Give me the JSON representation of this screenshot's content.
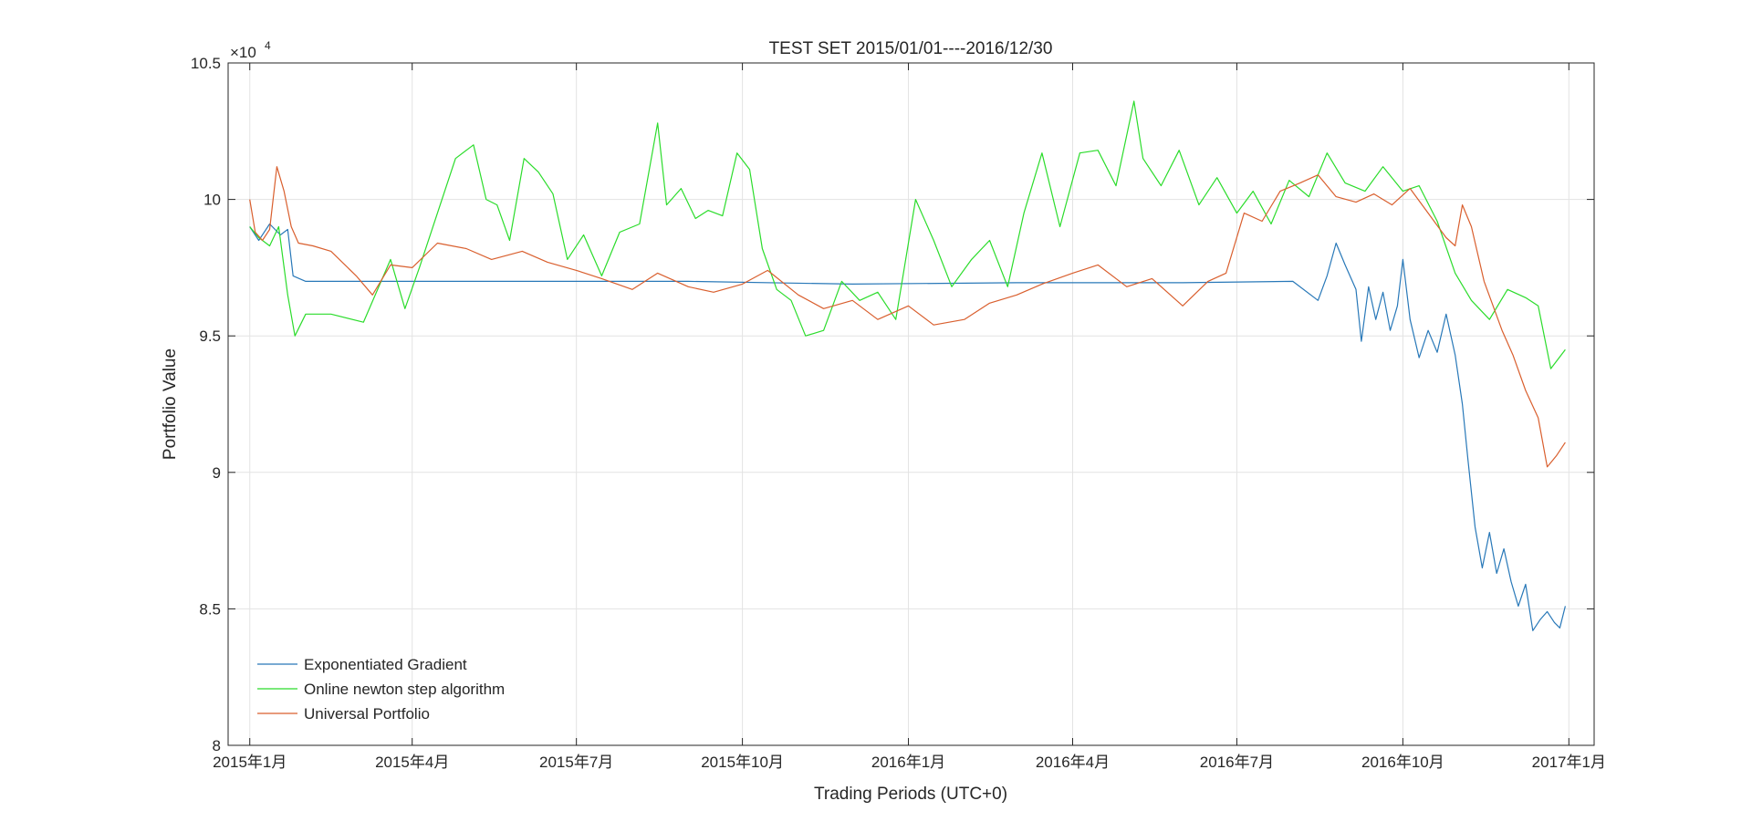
{
  "chart_data": {
    "type": "line",
    "title": "TEST SET 2015/01/01----2016/12/30",
    "xlabel": "Trading Periods (UTC+0)",
    "ylabel": "Portfolio Value",
    "y_exponent_label": "×10",
    "y_exponent_power": "4",
    "xlim": [
      "2014-12-20",
      "2017-01-15"
    ],
    "ylim": [
      80000,
      105000
    ],
    "y_ticks": [
      {
        "value": 80000,
        "label": "8"
      },
      {
        "value": 85000,
        "label": "8.5"
      },
      {
        "value": 90000,
        "label": "9"
      },
      {
        "value": 95000,
        "label": "9.5"
      },
      {
        "value": 100000,
        "label": "10"
      },
      {
        "value": 105000,
        "label": "10.5"
      }
    ],
    "x_ticks": [
      {
        "value": "2015-01-01",
        "label": "2015年1月"
      },
      {
        "value": "2015-04-01",
        "label": "2015年4月"
      },
      {
        "value": "2015-07-01",
        "label": "2015年7月"
      },
      {
        "value": "2015-10-01",
        "label": "2015年10月"
      },
      {
        "value": "2016-01-01",
        "label": "2016年1月"
      },
      {
        "value": "2016-04-01",
        "label": "2016年4月"
      },
      {
        "value": "2016-07-01",
        "label": "2016年7月"
      },
      {
        "value": "2016-10-01",
        "label": "2016年10月"
      },
      {
        "value": "2017-01-01",
        "label": "2017年1月"
      }
    ],
    "grid": true,
    "legend_position": "bottom-left",
    "series": [
      {
        "name": "Exponentiated Gradient",
        "color": "#2878b8",
        "x": [
          "2015-01-01",
          "2015-01-06",
          "2015-01-12",
          "2015-01-18",
          "2015-01-22",
          "2015-01-25",
          "2015-02-01",
          "2015-03-01",
          "2015-06-01",
          "2015-09-01",
          "2015-12-01",
          "2016-03-01",
          "2016-06-01",
          "2016-08-01",
          "2016-08-15",
          "2016-08-20",
          "2016-08-25",
          "2016-08-30",
          "2016-09-05",
          "2016-09-08",
          "2016-09-12",
          "2016-09-16",
          "2016-09-20",
          "2016-09-24",
          "2016-09-28",
          "2016-10-01",
          "2016-10-05",
          "2016-10-10",
          "2016-10-15",
          "2016-10-20",
          "2016-10-25",
          "2016-10-30",
          "2016-11-03",
          "2016-11-06",
          "2016-11-10",
          "2016-11-14",
          "2016-11-18",
          "2016-11-22",
          "2016-11-26",
          "2016-11-30",
          "2016-12-04",
          "2016-12-08",
          "2016-12-12",
          "2016-12-16",
          "2016-12-20",
          "2016-12-24",
          "2016-12-27",
          "2016-12-30"
        ],
        "values": [
          99000,
          98500,
          99100,
          98700,
          98900,
          97200,
          97000,
          97000,
          97000,
          97000,
          96900,
          96950,
          96950,
          97000,
          96300,
          97200,
          98400,
          97600,
          96700,
          94800,
          96800,
          95600,
          96600,
          95200,
          96100,
          97800,
          95600,
          94200,
          95200,
          94400,
          95800,
          94300,
          92500,
          90500,
          88000,
          86500,
          87800,
          86300,
          87200,
          86000,
          85100,
          85900,
          84200,
          84600,
          84900,
          84500,
          84300,
          85100
        ]
      },
      {
        "name": "Online newton step algorithm",
        "color": "#2bdc2b",
        "x": [
          "2015-01-01",
          "2015-01-06",
          "2015-01-12",
          "2015-01-17",
          "2015-01-22",
          "2015-01-26",
          "2015-02-01",
          "2015-02-15",
          "2015-03-05",
          "2015-03-20",
          "2015-03-28",
          "2015-04-05",
          "2015-04-15",
          "2015-04-25",
          "2015-05-05",
          "2015-05-12",
          "2015-05-18",
          "2015-05-25",
          "2015-06-02",
          "2015-06-10",
          "2015-06-18",
          "2015-06-26",
          "2015-07-05",
          "2015-07-15",
          "2015-07-25",
          "2015-08-05",
          "2015-08-15",
          "2015-08-20",
          "2015-08-28",
          "2015-09-05",
          "2015-09-12",
          "2015-09-20",
          "2015-09-28",
          "2015-10-05",
          "2015-10-12",
          "2015-10-20",
          "2015-10-28",
          "2015-11-05",
          "2015-11-15",
          "2015-11-25",
          "2015-12-05",
          "2015-12-15",
          "2015-12-25",
          "2016-01-05",
          "2016-01-15",
          "2016-01-25",
          "2016-02-05",
          "2016-02-15",
          "2016-02-25",
          "2016-03-05",
          "2016-03-15",
          "2016-03-25",
          "2016-04-05",
          "2016-04-15",
          "2016-04-25",
          "2016-05-05",
          "2016-05-10",
          "2016-05-20",
          "2016-05-30",
          "2016-06-10",
          "2016-06-20",
          "2016-07-01",
          "2016-07-10",
          "2016-07-20",
          "2016-07-30",
          "2016-08-10",
          "2016-08-20",
          "2016-08-30",
          "2016-09-10",
          "2016-09-20",
          "2016-10-01",
          "2016-10-10",
          "2016-10-20",
          "2016-10-30",
          "2016-11-08",
          "2016-11-18",
          "2016-11-28",
          "2016-12-08",
          "2016-12-15",
          "2016-12-22",
          "2016-12-30"
        ],
        "values": [
          99000,
          98600,
          98300,
          99000,
          96500,
          95000,
          95800,
          95800,
          95500,
          97800,
          96000,
          97500,
          99500,
          101500,
          102000,
          100000,
          99800,
          98500,
          101500,
          101000,
          100200,
          97800,
          98700,
          97200,
          98800,
          99100,
          102800,
          99800,
          100400,
          99300,
          99600,
          99400,
          101700,
          101100,
          98200,
          96700,
          96300,
          95000,
          95200,
          97000,
          96300,
          96600,
          95600,
          100000,
          98500,
          96800,
          97800,
          98500,
          96800,
          99500,
          101700,
          99000,
          101700,
          101800,
          100500,
          103600,
          101500,
          100500,
          101800,
          99800,
          100800,
          99500,
          100300,
          99100,
          100700,
          100100,
          101700,
          100600,
          100300,
          101200,
          100300,
          100500,
          99200,
          97300,
          96300,
          95600,
          96700,
          96400,
          96100,
          93800,
          94500
        ]
      },
      {
        "name": "Universal Portfolio",
        "color": "#d95f2e",
        "x": [
          "2015-01-01",
          "2015-01-04",
          "2015-01-08",
          "2015-01-12",
          "2015-01-16",
          "2015-01-20",
          "2015-01-24",
          "2015-01-28",
          "2015-02-05",
          "2015-02-15",
          "2015-03-01",
          "2015-03-10",
          "2015-03-20",
          "2015-04-01",
          "2015-04-15",
          "2015-05-01",
          "2015-05-15",
          "2015-06-01",
          "2015-06-15",
          "2015-07-01",
          "2015-07-15",
          "2015-08-01",
          "2015-08-15",
          "2015-09-01",
          "2015-09-15",
          "2015-10-01",
          "2015-10-15",
          "2015-11-01",
          "2015-11-15",
          "2015-12-01",
          "2015-12-15",
          "2016-01-01",
          "2016-01-15",
          "2016-02-01",
          "2016-02-15",
          "2016-03-01",
          "2016-03-15",
          "2016-04-01",
          "2016-04-15",
          "2016-05-01",
          "2016-05-15",
          "2016-06-01",
          "2016-06-15",
          "2016-06-25",
          "2016-07-05",
          "2016-07-15",
          "2016-07-25",
          "2016-08-05",
          "2016-08-15",
          "2016-08-25",
          "2016-09-05",
          "2016-09-15",
          "2016-09-25",
          "2016-10-05",
          "2016-10-15",
          "2016-10-25",
          "2016-10-30",
          "2016-11-03",
          "2016-11-08",
          "2016-11-15",
          "2016-11-25",
          "2016-12-01",
          "2016-12-08",
          "2016-12-15",
          "2016-12-20",
          "2016-12-25",
          "2016-12-30"
        ],
        "values": [
          100000,
          98800,
          98500,
          98900,
          101200,
          100300,
          99000,
          98400,
          98300,
          98100,
          97200,
          96500,
          97600,
          97500,
          98400,
          98200,
          97800,
          98100,
          97700,
          97400,
          97100,
          96700,
          97300,
          96800,
          96600,
          96900,
          97400,
          96500,
          96000,
          96300,
          95600,
          96100,
          95400,
          95600,
          96200,
          96500,
          96900,
          97300,
          97600,
          96800,
          97100,
          96100,
          97000,
          97300,
          99500,
          99200,
          100300,
          100600,
          100900,
          100100,
          99900,
          100200,
          99800,
          100400,
          99500,
          98600,
          98300,
          99800,
          99000,
          97000,
          95200,
          94300,
          93000,
          92000,
          90200,
          90600,
          91100
        ]
      }
    ]
  }
}
